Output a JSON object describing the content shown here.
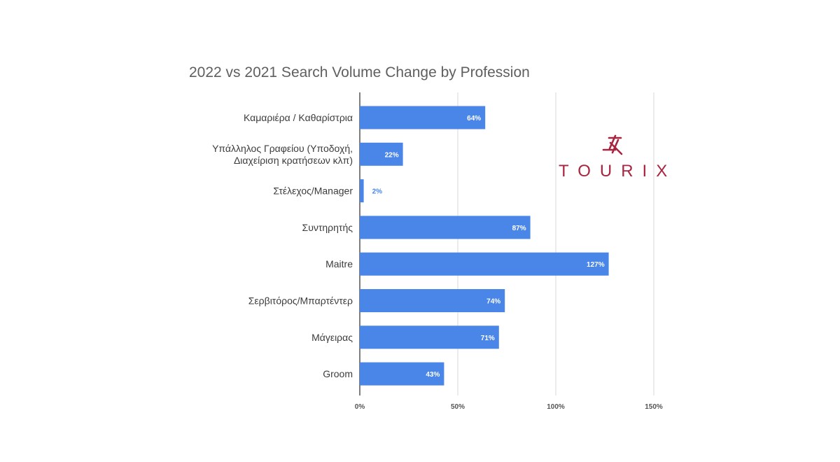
{
  "chart_data": {
    "type": "bar",
    "orientation": "horizontal",
    "title": "2022 vs 2021 Search Volume Change by Profession",
    "categories": [
      [
        "Καμαριέρα / Καθαρίστρια"
      ],
      [
        "Υπάλληλος Γραφείου (Υποδοχή,",
        "Διαχείριση κρατήσεων κλπ)"
      ],
      [
        "Στέλεχος/Manager"
      ],
      [
        "Συντηρητής"
      ],
      [
        "Maitre"
      ],
      [
        "Σερβιτόρος/Μπαρτέντερ"
      ],
      [
        "Μάγειρας"
      ],
      [
        "Groom"
      ]
    ],
    "values": [
      64,
      22,
      2,
      87,
      127,
      74,
      71,
      43
    ],
    "data_labels": [
      "64%",
      "22%",
      "2%",
      "87%",
      "127%",
      "74%",
      "71%",
      "43%"
    ],
    "xlim": [
      0,
      150
    ],
    "x_ticks": [
      0,
      50,
      100,
      150
    ],
    "x_tick_labels": [
      "0%",
      "50%",
      "100%",
      "150%"
    ],
    "xlabel": "",
    "ylabel": "",
    "grid": true,
    "colors": {
      "bar": "#4a86e8",
      "grid": "#d9d9d9",
      "axis": "#555555",
      "label_inside": "#ffffff",
      "label_outside": "#4a86e8"
    }
  },
  "logo": {
    "text": "TOURIX",
    "color": "#a8253f",
    "icon": "tourix-mark-icon"
  }
}
